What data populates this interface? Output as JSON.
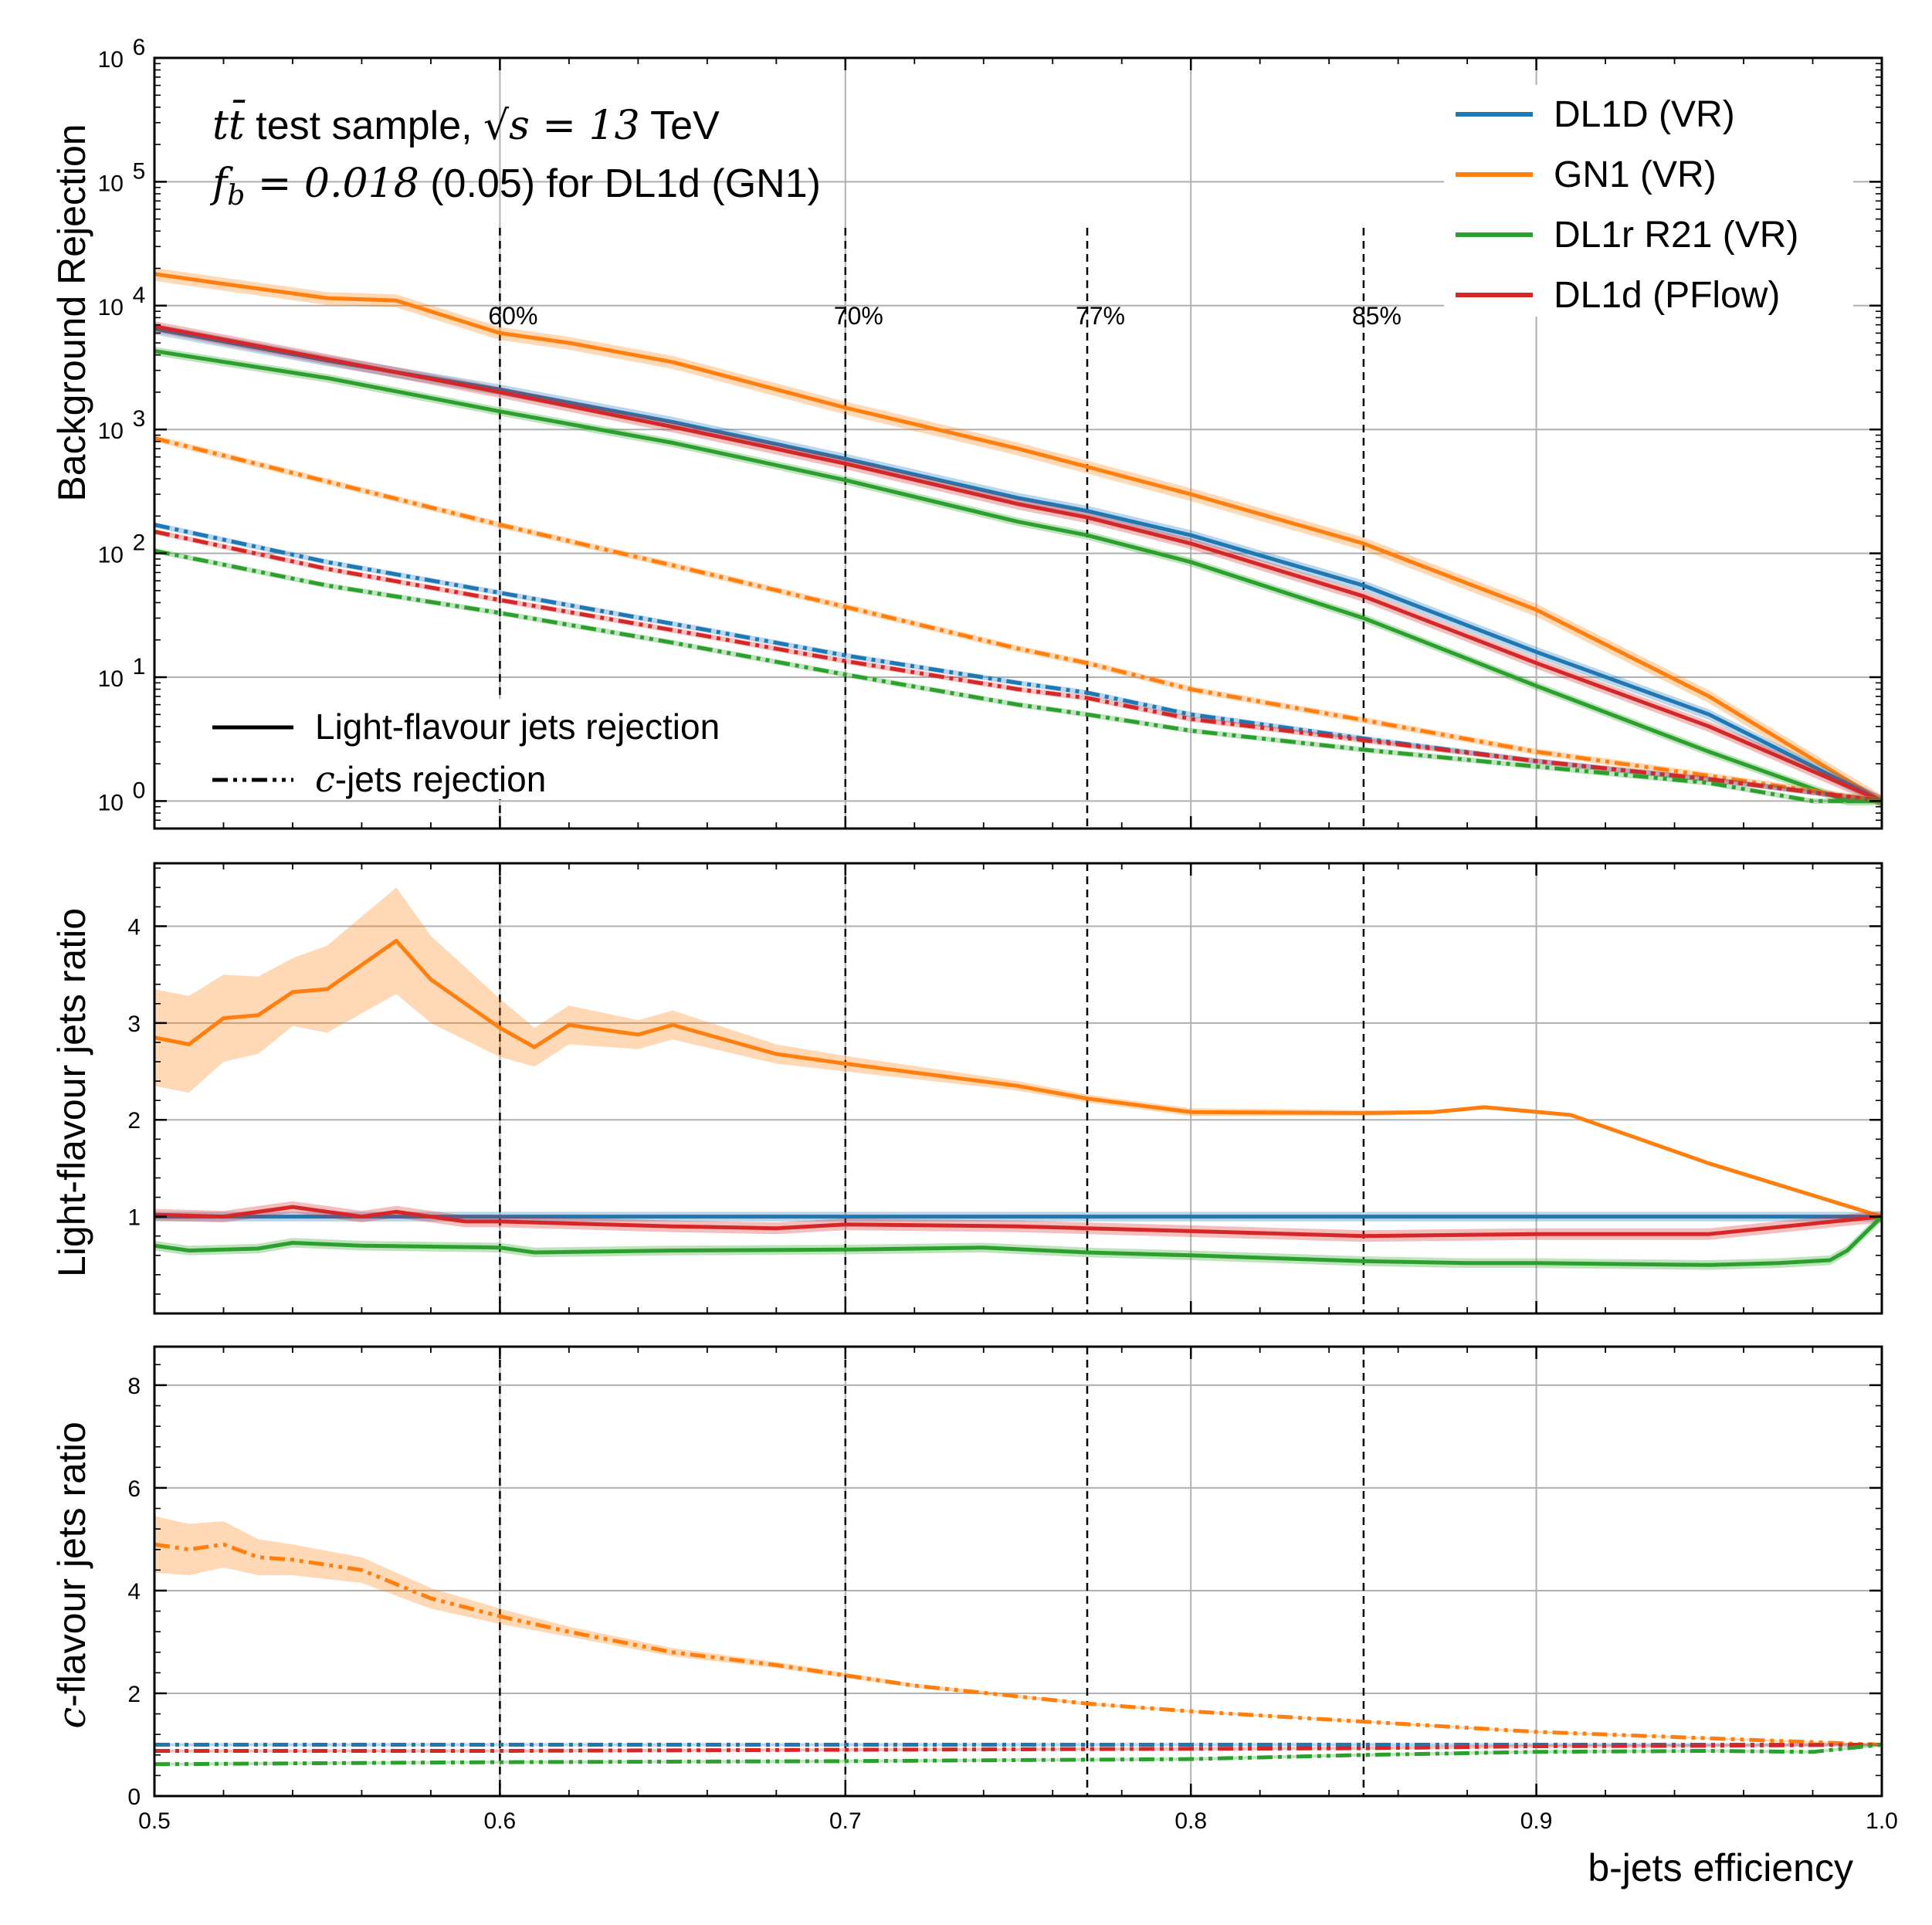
{
  "chart_data": {
    "type": "line",
    "xlabel": "b-jets efficiency",
    "x_ticks": [
      "0.5",
      "0.6",
      "0.7",
      "0.8",
      "0.9",
      "1.0"
    ],
    "xlim": [
      0.5,
      1.0
    ],
    "working_points": [
      {
        "x": 0.6,
        "label": "60%"
      },
      {
        "x": 0.7,
        "label": "70%"
      },
      {
        "x": 0.77,
        "label": "77%"
      },
      {
        "x": 0.85,
        "label": "85%"
      }
    ],
    "colors": {
      "DL1D (VR)": "#1f77b4",
      "GN1 (VR)": "#ff7f0e",
      "DL1r R21 (VR)": "#2ca02c",
      "DL1d (PFlow)": "#d62728"
    },
    "annotation": {
      "line1_math": "tt̄",
      "line1_text": " test sample, ",
      "line1_math2": "√s = 13",
      "line1_text2": " TeV",
      "line2_math": "f",
      "line2_sub": "b",
      "line2_math2": " = 0.018",
      "line2_text": " (0.05) for DL1d (GN1)"
    },
    "legend": {
      "position": "top-right",
      "entries": [
        "DL1D (VR)",
        "GN1 (VR)",
        "DL1r R21 (VR)",
        "DL1d (PFlow)"
      ]
    },
    "style_legend": {
      "position": "lower-left",
      "solid_label": "Light-flavour jets rejection",
      "dashdot_label_italic": "c",
      "dashdot_label": "-jets rejection"
    },
    "panels": [
      {
        "id": "rejection",
        "ylabel": "Background Rejection",
        "yscale": "log",
        "ylim": [
          0.6,
          1000000
        ],
        "y_ticks": [
          {
            "value": 1,
            "base": "10",
            "exp": "0"
          },
          {
            "value": 10,
            "base": "10",
            "exp": "1"
          },
          {
            "value": 100,
            "base": "10",
            "exp": "2"
          },
          {
            "value": 1000,
            "base": "10",
            "exp": "3"
          },
          {
            "value": 10000,
            "base": "10",
            "exp": "4"
          },
          {
            "value": 100000,
            "base": "10",
            "exp": "5"
          },
          {
            "value": 1000000,
            "base": "10",
            "exp": "6"
          }
        ],
        "series": [
          {
            "name": "GN1 (VR)",
            "style": "solid",
            "band": 0.12,
            "x": [
              0.5,
              0.52,
              0.55,
              0.57,
              0.6,
              0.62,
              0.65,
              0.7,
              0.75,
              0.77,
              0.8,
              0.85,
              0.9,
              0.95,
              1.0
            ],
            "y": [
              18000,
              15000,
              11500,
              11000,
              6000,
              5000,
              3500,
              1500,
              700,
              500,
              300,
              120,
              35,
              7,
              1
            ]
          },
          {
            "name": "DL1D (VR)",
            "style": "solid",
            "band": 0.1,
            "x": [
              0.5,
              0.55,
              0.6,
              0.65,
              0.7,
              0.75,
              0.77,
              0.8,
              0.85,
              0.9,
              0.95,
              1.0
            ],
            "y": [
              6500,
              3600,
              2100,
              1150,
              580,
              280,
              220,
              140,
              55,
              16,
              5,
              1
            ]
          },
          {
            "name": "DL1d (PFlow)",
            "style": "solid",
            "band": 0.1,
            "x": [
              0.5,
              0.55,
              0.6,
              0.65,
              0.7,
              0.75,
              0.77,
              0.8,
              0.85,
              0.9,
              0.95,
              1.0
            ],
            "y": [
              6800,
              3700,
              2000,
              1050,
              530,
              250,
              195,
              120,
              45,
              13,
              4,
              1
            ]
          },
          {
            "name": "DL1r R21 (VR)",
            "style": "solid",
            "band": 0.08,
            "x": [
              0.5,
              0.55,
              0.6,
              0.65,
              0.7,
              0.75,
              0.77,
              0.8,
              0.85,
              0.9,
              0.95,
              0.99,
              1.0
            ],
            "y": [
              4300,
              2600,
              1400,
              780,
              390,
              180,
              140,
              85,
              30,
              8.5,
              2.5,
              1,
              1
            ]
          },
          {
            "name": "GN1 (VR)",
            "style": "dashdot",
            "band": 0.06,
            "x": [
              0.5,
              0.55,
              0.6,
              0.65,
              0.7,
              0.75,
              0.77,
              0.8,
              0.85,
              0.9,
              0.95,
              1.0
            ],
            "y": [
              850,
              380,
              170,
              80,
              37,
              17,
              13,
              8,
              4.5,
              2.5,
              1.6,
              1
            ]
          },
          {
            "name": "DL1D (VR)",
            "style": "dashdot",
            "band": 0.05,
            "x": [
              0.5,
              0.55,
              0.6,
              0.65,
              0.7,
              0.75,
              0.77,
              0.8,
              0.85,
              0.9,
              0.95,
              1.0
            ],
            "y": [
              170,
              85,
              48,
              27,
              15,
              9,
              7.5,
              5,
              3.2,
              2.1,
              1.5,
              1
            ]
          },
          {
            "name": "DL1d (PFlow)",
            "style": "dashdot",
            "band": 0.05,
            "x": [
              0.5,
              0.55,
              0.6,
              0.65,
              0.7,
              0.75,
              0.77,
              0.8,
              0.85,
              0.9,
              0.95,
              1.0
            ],
            "y": [
              150,
              75,
              42,
              24,
              13.5,
              8,
              6.8,
              4.6,
              3.1,
              2.1,
              1.5,
              1
            ]
          },
          {
            "name": "DL1r R21 (VR)",
            "style": "dashdot",
            "band": 0.05,
            "x": [
              0.5,
              0.55,
              0.6,
              0.65,
              0.7,
              0.75,
              0.77,
              0.8,
              0.85,
              0.9,
              0.95,
              0.98,
              1.0
            ],
            "y": [
              105,
              55,
              33,
              19,
              10.5,
              6,
              5,
              3.7,
              2.6,
              1.9,
              1.4,
              1,
              1
            ]
          }
        ]
      },
      {
        "id": "light_ratio",
        "ylabel": "Light-flavour jets ratio",
        "yscale": "linear",
        "ylim": [
          0.0,
          4.65
        ],
        "y_ticks": [
          {
            "value": 1,
            "label": "1"
          },
          {
            "value": 2,
            "label": "2"
          },
          {
            "value": 3,
            "label": "3"
          },
          {
            "value": 4,
            "label": "4"
          }
        ],
        "series": [
          {
            "name": "DL1D (VR)",
            "style": "solid",
            "band": 0.05,
            "x": [
              0.5,
              0.6,
              0.7,
              0.8,
              0.9,
              1.0
            ],
            "y": [
              1,
              1,
              1,
              1,
              1,
              1
            ]
          },
          {
            "name": "GN1 (VR)",
            "style": "solid",
            "band_abs": [
              0.5,
              0.5,
              0.45,
              0.4,
              0.35,
              0.45,
              0.55,
              0.45,
              0.3,
              0.2,
              0.2,
              0.15,
              0.15,
              0.1,
              0.08,
              0.05,
              0.04,
              0.04,
              0.03,
              0.02,
              0.02,
              0.02,
              0.02,
              0.02,
              0.02,
              0.02
            ],
            "x": [
              0.5,
              0.51,
              0.52,
              0.53,
              0.54,
              0.55,
              0.57,
              0.58,
              0.6,
              0.61,
              0.62,
              0.64,
              0.65,
              0.68,
              0.7,
              0.75,
              0.77,
              0.8,
              0.85,
              0.87,
              0.885,
              0.91,
              0.93,
              0.95,
              0.98,
              1.0
            ],
            "y": [
              2.85,
              2.78,
              3.05,
              3.08,
              3.32,
              3.35,
              3.85,
              3.45,
              2.95,
              2.75,
              2.98,
              2.88,
              2.98,
              2.68,
              2.58,
              2.35,
              2.22,
              2.08,
              2.07,
              2.08,
              2.13,
              2.05,
              1.8,
              1.55,
              1.22,
              1.0
            ]
          },
          {
            "name": "DL1d (PFlow)",
            "style": "solid",
            "band": 0.06,
            "x": [
              0.5,
              0.52,
              0.54,
              0.56,
              0.57,
              0.59,
              0.6,
              0.62,
              0.65,
              0.68,
              0.7,
              0.75,
              0.77,
              0.8,
              0.85,
              0.9,
              0.95,
              1.0
            ],
            "y": [
              1.02,
              1.0,
              1.1,
              1.0,
              1.05,
              0.95,
              0.95,
              0.93,
              0.9,
              0.88,
              0.92,
              0.9,
              0.88,
              0.85,
              0.8,
              0.82,
              0.82,
              1.0
            ]
          },
          {
            "name": "DL1r R21 (VR)",
            "style": "solid",
            "band": 0.05,
            "x": [
              0.5,
              0.51,
              0.53,
              0.54,
              0.56,
              0.6,
              0.61,
              0.65,
              0.7,
              0.74,
              0.77,
              0.8,
              0.85,
              0.88,
              0.9,
              0.95,
              0.97,
              0.985,
              0.99,
              1.0
            ],
            "y": [
              0.7,
              0.65,
              0.67,
              0.73,
              0.7,
              0.68,
              0.63,
              0.65,
              0.66,
              0.68,
              0.63,
              0.6,
              0.54,
              0.52,
              0.52,
              0.5,
              0.52,
              0.55,
              0.65,
              1.0
            ]
          }
        ]
      },
      {
        "id": "c_ratio",
        "ylabel": "c-flavour jets ratio",
        "ylabel_italic": "c",
        "ylabel_rest": "-flavour jets ratio",
        "yscale": "linear",
        "ylim": [
          0.0,
          8.75
        ],
        "y_ticks": [
          {
            "value": 0,
            "label": "0"
          },
          {
            "value": 2,
            "label": "2"
          },
          {
            "value": 4,
            "label": "4"
          },
          {
            "value": 6,
            "label": "6"
          },
          {
            "value": 8,
            "label": "8"
          }
        ],
        "series": [
          {
            "name": "DL1D (VR)",
            "style": "dashdot",
            "band": 0.03,
            "x": [
              0.5,
              0.6,
              0.7,
              0.8,
              0.9,
              1.0
            ],
            "y": [
              1,
              1,
              1,
              1,
              1,
              1
            ]
          },
          {
            "name": "GN1 (VR)",
            "style": "dashdot",
            "band_abs": [
              0.55,
              0.5,
              0.45,
              0.35,
              0.3,
              0.25,
              0.2,
              0.15,
              0.1,
              0.08,
              0.06,
              0.05,
              0.04,
              0.03,
              0.02,
              0.02,
              0.02,
              0.02
            ],
            "x": [
              0.5,
              0.51,
              0.52,
              0.53,
              0.54,
              0.56,
              0.58,
              0.6,
              0.62,
              0.65,
              0.68,
              0.7,
              0.72,
              0.77,
              0.8,
              0.85,
              0.9,
              1.0
            ],
            "y": [
              4.9,
              4.8,
              4.9,
              4.65,
              4.6,
              4.4,
              3.85,
              3.5,
              3.2,
              2.8,
              2.55,
              2.35,
              2.15,
              1.8,
              1.65,
              1.45,
              1.25,
              1.0
            ]
          },
          {
            "name": "DL1d (PFlow)",
            "style": "dashdot",
            "band": 0.03,
            "x": [
              0.5,
              0.6,
              0.7,
              0.8,
              0.85,
              0.9,
              0.95,
              1.0
            ],
            "y": [
              0.88,
              0.88,
              0.9,
              0.92,
              0.93,
              0.97,
              0.98,
              1.0
            ]
          },
          {
            "name": "DL1r R21 (VR)",
            "style": "dashdot",
            "band": 0.03,
            "x": [
              0.5,
              0.55,
              0.6,
              0.7,
              0.8,
              0.85,
              0.9,
              0.95,
              0.98,
              1.0
            ],
            "y": [
              0.62,
              0.64,
              0.66,
              0.68,
              0.72,
              0.8,
              0.86,
              0.88,
              0.86,
              1.0
            ]
          }
        ]
      }
    ]
  }
}
